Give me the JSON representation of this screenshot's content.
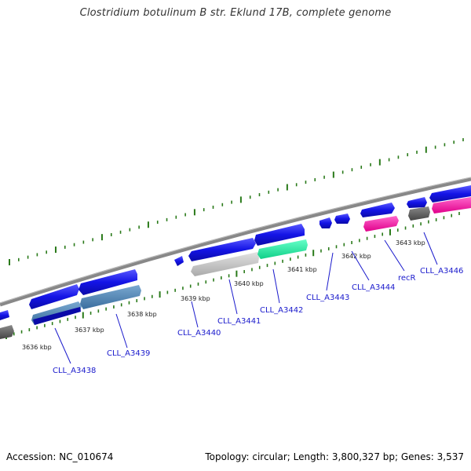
{
  "title": "Clostridium botulinum B str. Eklund 17B, complete genome",
  "footer": {
    "accession": "Accession: NC_010674",
    "summary": "Topology: circular; Length: 3,800,327 bp; Genes: 3,537"
  },
  "colors": {
    "backbone": "#888888",
    "tick": "#2a7a1a",
    "gene_blue": "#1a1ae6",
    "gene_steel": "#4a82b4",
    "gene_gray": "#c8c8c8",
    "gene_dark": "#666666",
    "gene_green": "#22f0a0",
    "gene_pink": "#ff1aa6",
    "label": "#1a1acc"
  },
  "kbp_ticks": [
    "3636 kbp",
    "3637 kbp",
    "3638 kbp",
    "3639 kbp",
    "3640 kbp",
    "3641 kbp",
    "3642 kbp",
    "3643 kbp"
  ],
  "genes": [
    "CLL_A3438",
    "CLL_A3439",
    "CLL_A3440",
    "CLL_A3441",
    "CLL_A3442",
    "CLL_A3443",
    "CLL_A3444",
    "recR",
    "CLL_A3446"
  ]
}
